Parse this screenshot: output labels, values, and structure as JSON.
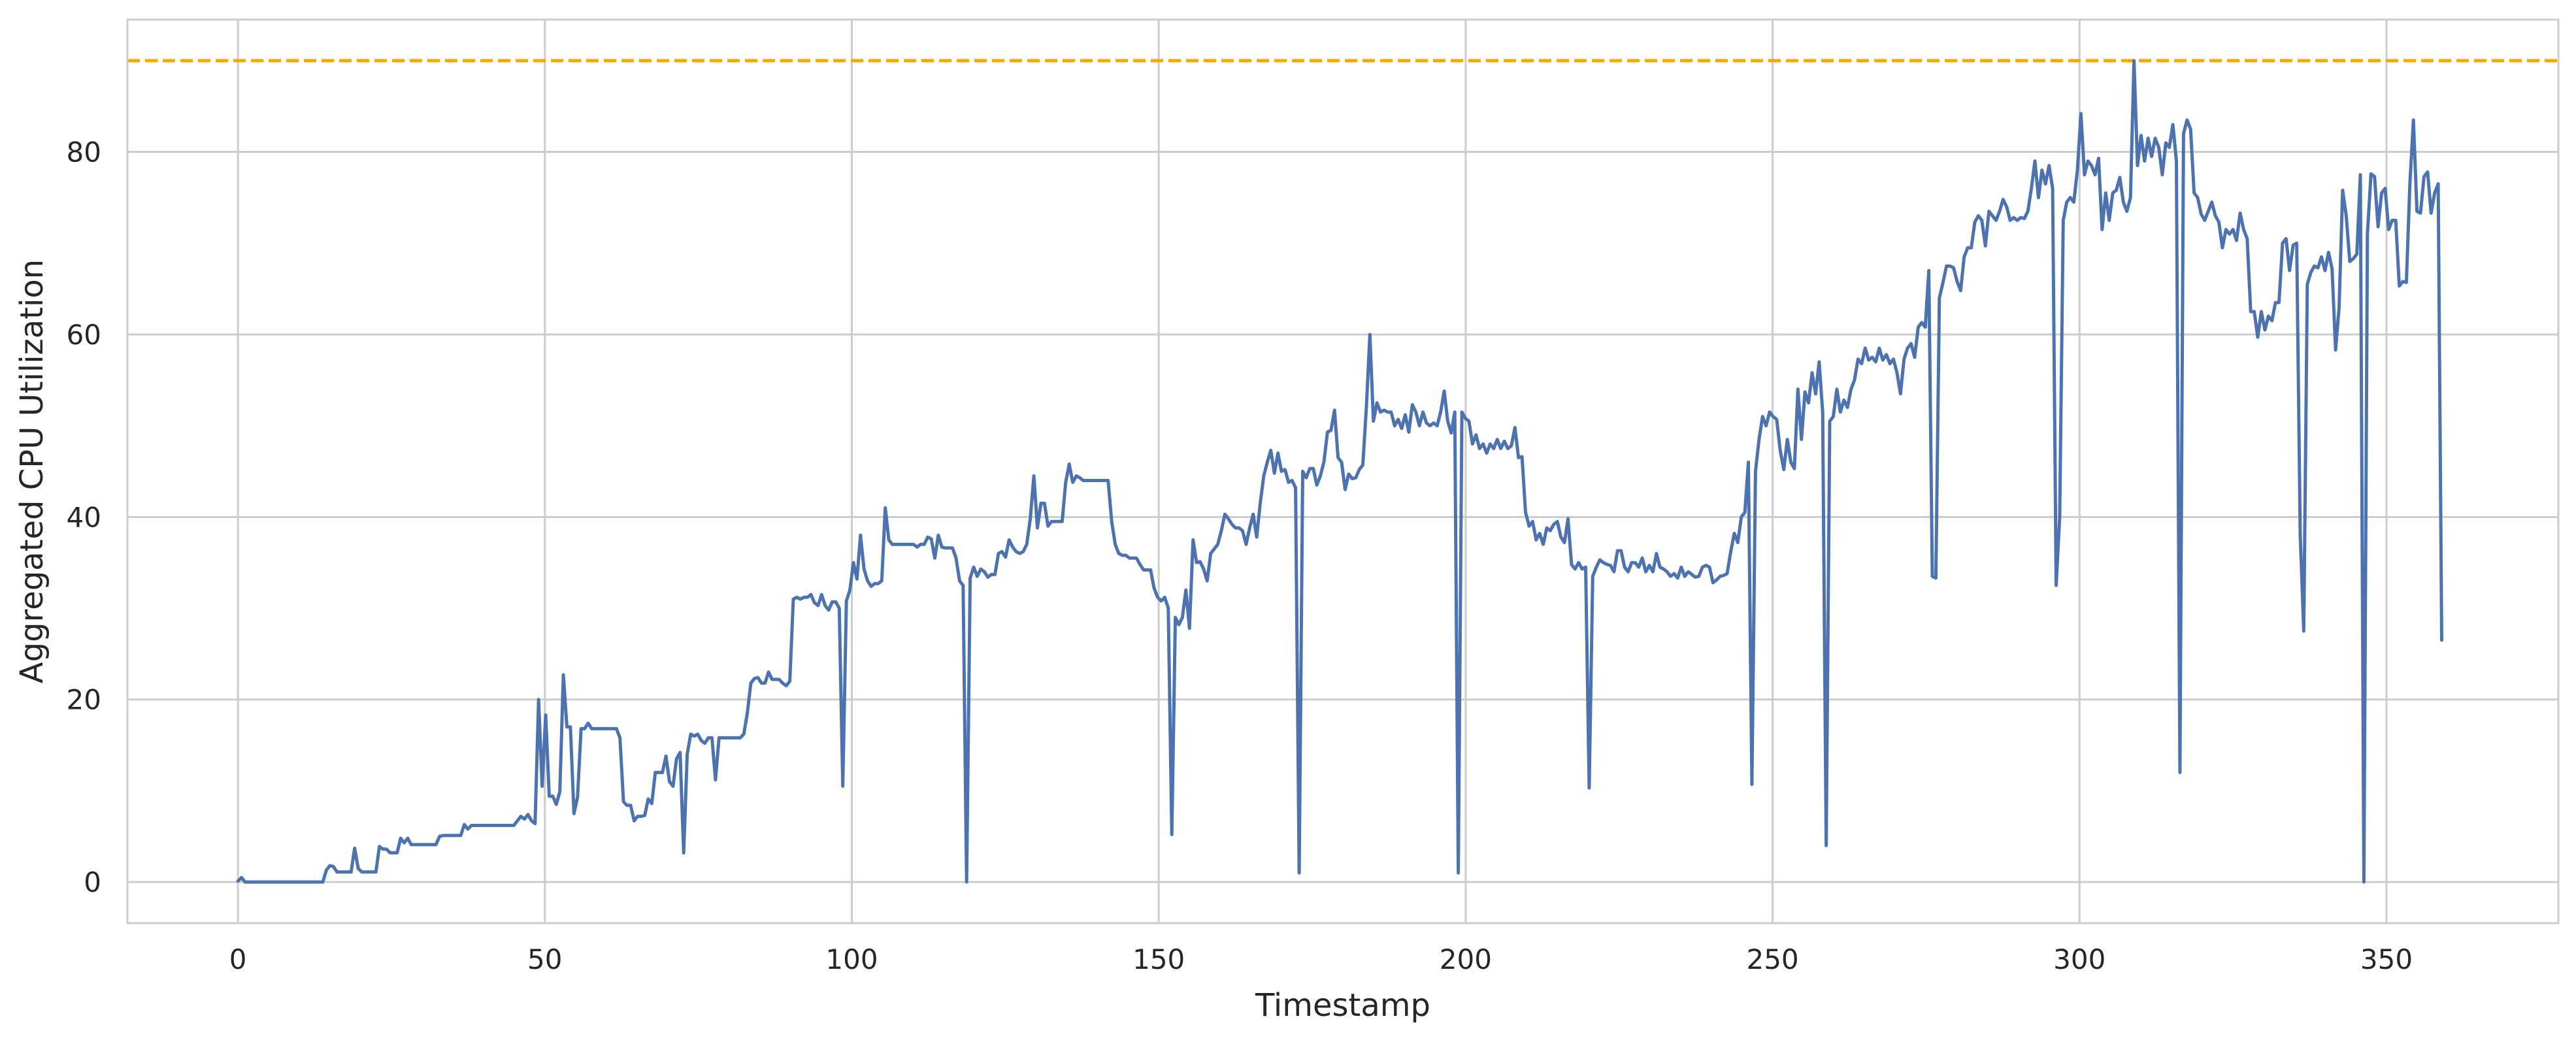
{
  "chart_data": {
    "type": "line",
    "title": "",
    "xlabel": "Timestamp",
    "ylabel": "Aggregated CPU Utilization",
    "xlim": [
      -18,
      378
    ],
    "ylim": [
      -4.5,
      94.5
    ],
    "xticks": [
      0,
      50,
      100,
      150,
      200,
      250,
      300,
      350
    ],
    "yticks": [
      0,
      20,
      40,
      60,
      80
    ],
    "xtick_labels": [
      "0",
      "50",
      "100",
      "150",
      "200",
      "250",
      "300",
      "350"
    ],
    "ytick_labels": [
      "0",
      "20",
      "40",
      "60",
      "80"
    ],
    "grid": true,
    "threshold": {
      "y": 90,
      "style": "dashed",
      "color": "#FFA500"
    },
    "colors": {
      "line": "#4C72B0",
      "threshold": "#FFA500",
      "grid": "#CCCCCC",
      "frame": "#CCCCCC"
    },
    "series": [
      {
        "values": [
          0.1,
          0.5,
          0,
          0,
          0,
          0,
          0,
          0,
          0,
          0,
          0,
          0,
          0,
          0,
          0,
          0,
          0,
          0,
          0,
          0,
          0,
          0,
          0,
          0,
          0,
          1.3,
          1.8,
          1.7,
          1.1,
          1.1,
          1.1,
          1.1,
          1.1,
          3.7,
          1.5,
          1.1,
          1.1,
          1.1,
          1.1,
          1.1,
          3.9,
          3.6,
          3.6,
          3.2,
          3.2,
          3.2,
          4.8,
          4.3,
          4.8,
          4.1,
          4.1,
          4.1,
          4.1,
          4.1,
          4.1,
          4.1,
          4.1,
          5,
          5.1,
          5.1,
          5.1,
          5.1,
          5.1,
          5.1,
          6.3,
          5.8,
          6.2,
          6.2,
          6.2,
          6.2,
          6.2,
          6.2,
          6.2,
          6.2,
          6.2,
          6.2,
          6.2,
          6.2,
          6.2,
          6.7,
          7.2,
          6.9,
          7.4,
          6.7,
          6.4,
          20,
          10.5,
          18.3,
          9.4,
          9.4,
          8.5,
          9.9,
          22.7,
          17,
          17,
          7.5,
          9.3,
          16.8,
          16.8,
          17.4,
          16.8,
          16.8,
          16.8,
          16.8,
          16.8,
          16.8,
          16.8,
          16.8,
          15.8,
          8.8,
          8.4,
          8.4,
          6.7,
          7.2,
          7.2,
          7.3,
          9.1,
          8.6,
          12,
          12,
          12,
          13.8,
          11,
          10.5,
          13.5,
          14.2,
          3.2,
          14,
          16.2,
          16,
          16.2,
          15.5,
          15.2,
          15.8,
          15.8,
          11.2,
          15.8,
          15.8,
          15.8,
          15.8,
          15.8,
          15.8,
          15.8,
          16.2,
          18.5,
          21.8,
          22.3,
          22.4,
          21.8,
          21.8,
          23,
          22.2,
          22.2,
          22.2,
          21.8,
          21.5,
          22,
          31,
          31.2,
          31,
          31.2,
          31.2,
          31.5,
          30.6,
          30.3,
          31.5,
          30.3,
          29.8,
          30.7,
          30.7,
          30,
          10.5,
          30.8,
          32,
          35,
          33.2,
          38,
          34.3,
          33,
          32.4,
          32.7,
          32.7,
          33,
          41,
          37.5,
          37,
          37,
          37,
          37,
          37,
          37,
          37,
          36.7,
          37,
          37,
          37.8,
          37.6,
          35.5,
          38,
          36.7,
          36.6,
          36.6,
          36.6,
          35.5,
          33,
          32.5,
          0,
          33.3,
          34.5,
          33.5,
          34.3,
          34,
          33.4,
          33.7,
          33.7,
          36,
          36.2,
          35.6,
          37.5,
          36.7,
          36.2,
          36,
          36.2,
          37,
          39.8,
          44.5,
          38.8,
          41.5,
          41.5,
          39,
          39.5,
          39.5,
          39.5,
          39.5,
          43.8,
          45.8,
          43.8,
          44.5,
          44.3,
          44,
          44,
          44,
          44,
          44,
          44,
          44,
          44,
          39.5,
          37,
          36,
          35.8,
          35.8,
          35.5,
          35.5,
          35.5,
          34.8,
          34.2,
          34.2,
          34.2,
          32.2,
          31.2,
          30.8,
          31.2,
          30,
          5.2,
          29,
          28.2,
          29,
          32,
          27.8,
          37.5,
          35,
          35.1,
          34.3,
          33,
          36,
          36.5,
          37,
          38.5,
          40.3,
          39.8,
          39.2,
          38.8,
          38.8,
          38.5,
          37,
          38.8,
          40.3,
          37.8,
          41.5,
          44.5,
          46,
          47.3,
          44.8,
          47,
          45,
          45.2,
          43.8,
          44,
          43.2,
          1,
          45,
          44.3,
          45.3,
          45.3,
          43.5,
          44.5,
          46,
          49.3,
          49.5,
          51.7,
          46.5,
          46,
          43,
          44.7,
          44.2,
          44.3,
          45.2,
          45.7,
          52,
          60,
          50.5,
          52.5,
          51.5,
          51.7,
          51.5,
          51.5,
          50,
          50.7,
          49.7,
          51.2,
          49.3,
          52.3,
          51.5,
          50,
          51.5,
          50.3,
          50,
          50.3,
          50,
          51.5,
          53.8,
          50.5,
          49.2,
          51.5,
          1,
          51.5,
          50.8,
          50.5,
          48,
          49,
          47.5,
          48,
          47,
          48,
          47.5,
          48.5,
          47.5,
          48.3,
          47.5,
          47.8,
          49.8,
          46.5,
          46.6,
          40.5,
          39,
          39.5,
          37.5,
          38.2,
          37,
          38.8,
          38.5,
          39.2,
          39.5,
          37.8,
          37.2,
          39.8,
          34.8,
          34.3,
          35,
          34.3,
          34.5,
          10.3,
          33.5,
          34.5,
          35.3,
          35,
          34.8,
          34.7,
          34,
          36.3,
          36.3,
          34.5,
          34,
          35,
          35,
          34.5,
          35.5,
          34,
          34.7,
          34,
          36,
          34.5,
          34.3,
          34,
          33.5,
          33.8,
          33.3,
          34.5,
          33.5,
          34,
          33.7,
          33.4,
          33.5,
          34.5,
          34.7,
          34.5,
          32.8,
          33.1,
          33.5,
          33.6,
          33.8,
          36.2,
          38.2,
          37.2,
          40,
          40.5,
          46,
          10.7,
          45,
          48.5,
          51,
          50,
          51.5,
          51,
          50.7,
          47.3,
          45.2,
          48.5,
          46,
          45.3,
          54,
          48.5,
          53.7,
          52.5,
          55.8,
          53.5,
          57,
          51.5,
          4,
          50.5,
          51,
          54,
          51.5,
          52.8,
          52,
          54,
          55,
          57.3,
          56.8,
          58.5,
          57.2,
          57.5,
          57,
          58.5,
          57.2,
          57.8,
          56.8,
          57.3,
          55.8,
          53.5,
          57.3,
          58.5,
          59,
          57.5,
          60.8,
          61.3,
          60.8,
          67,
          33.5,
          33.3,
          64,
          65.7,
          67.5,
          67.5,
          67.3,
          65.8,
          64.8,
          68.5,
          69.5,
          69.5,
          72.3,
          73,
          72.5,
          69.7,
          73.5,
          73,
          72.5,
          73.5,
          74.8,
          74,
          72.5,
          72.8,
          72.5,
          72.8,
          72.7,
          73.5,
          76,
          79,
          75,
          78,
          76.5,
          78.5,
          76,
          32.5,
          40,
          72.5,
          74.5,
          75,
          74.5,
          78,
          84.2,
          77.5,
          79,
          78.5,
          77.5,
          79.3,
          71.5,
          75.5,
          72.5,
          75.5,
          75.8,
          77.2,
          74.5,
          73.5,
          75,
          90,
          78.5,
          81.8,
          79,
          81.5,
          79.5,
          81.5,
          80.5,
          77.5,
          81,
          80.5,
          83,
          79,
          12,
          82,
          83.5,
          82.5,
          75.5,
          75,
          73.2,
          72.5,
          73.5,
          74.5,
          73,
          72.3,
          69.5,
          71.5,
          71,
          71.5,
          70.3,
          73.3,
          71.5,
          70.5,
          62.5,
          62.5,
          59.7,
          62.5,
          60.5,
          62,
          61.5,
          63.5,
          63.5,
          70,
          70.5,
          67,
          69.8,
          70,
          38,
          27.5,
          65.5,
          66.8,
          67.5,
          67.3,
          68.5,
          67,
          69,
          67.2,
          58.3,
          63,
          75.8,
          73,
          68,
          68.3,
          68.8,
          77.5,
          0,
          71,
          77.6,
          77.3,
          71.8,
          75.5,
          76,
          71.5,
          72.5,
          72.5,
          65.3,
          65.8,
          65.7,
          76.5,
          83.5,
          73.5,
          73.3,
          77.3,
          77.8,
          73.3,
          75.5,
          76.5,
          26.5
        ]
      }
    ]
  }
}
